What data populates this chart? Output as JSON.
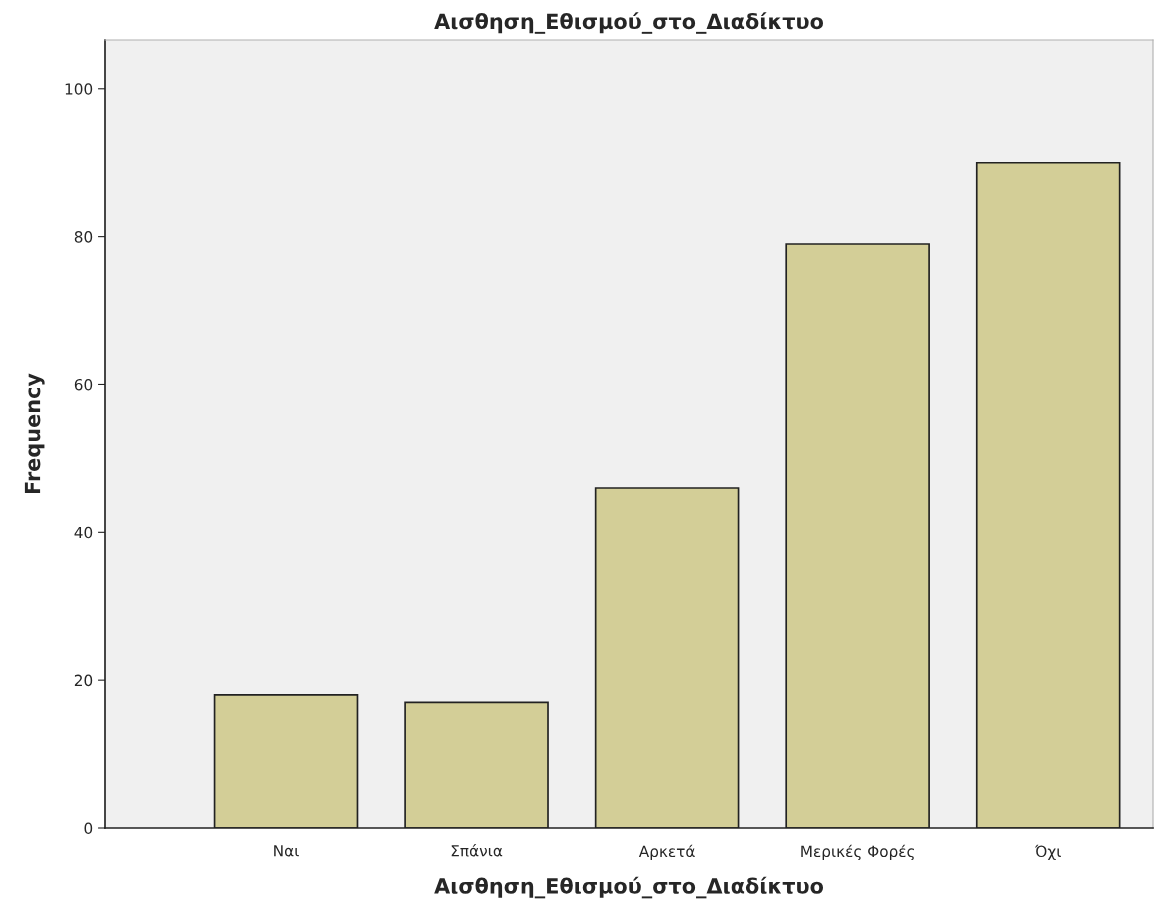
{
  "chart_data": {
    "type": "bar",
    "title": "Αισθηση_Εθισμού_στο_Διαδίκτυο",
    "xlabel": "Αισθηση_Εθισμού_στο_Διαδίκτυο",
    "ylabel": "Frequency",
    "categories": [
      "Ναι",
      "Σπάνια",
      "Αρκετά",
      "Μερικές Φορές",
      "Όχι"
    ],
    "values": [
      18,
      17,
      46,
      79,
      90
    ],
    "color": "#d3ce97",
    "ylim": [
      0,
      106.6
    ],
    "yticks": [
      0,
      20,
      40,
      60,
      80,
      100
    ],
    "grid": false
  }
}
